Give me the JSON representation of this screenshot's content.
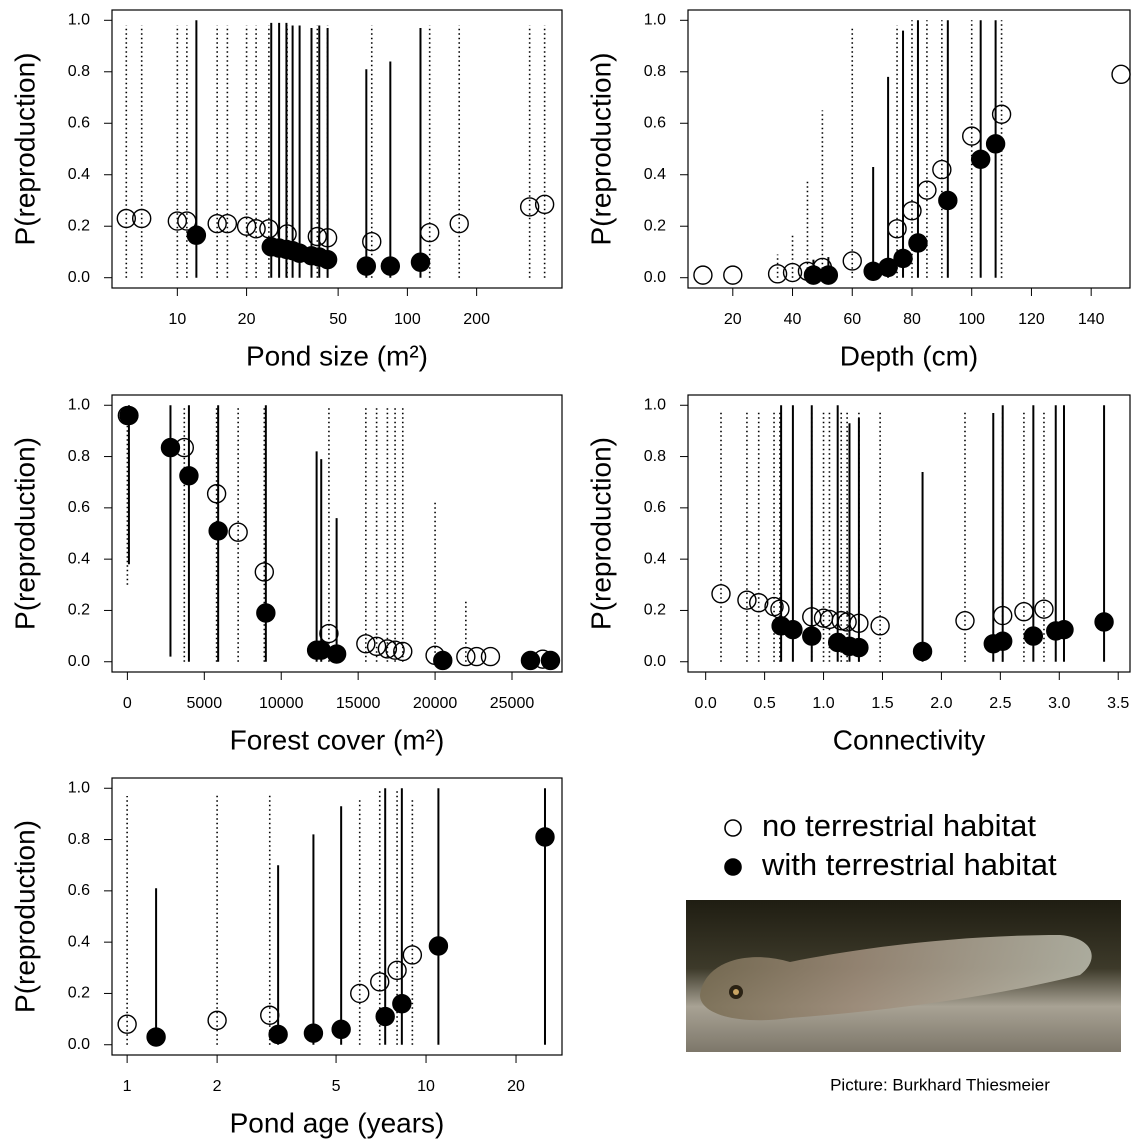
{
  "chart_data": [
    {
      "type": "scatter",
      "xlabel": "Pond size (m²)",
      "ylabel": "P(reproduction)",
      "log_x": true,
      "xlim": [
        5.2,
        470
      ],
      "ylim": [
        -0.04,
        1.04
      ],
      "xticks": [
        10,
        20,
        50,
        100,
        200
      ],
      "yticks": [
        {
          "value": 0,
          "label": "0.0"
        },
        0.2,
        0.4,
        0.6,
        0.8,
        {
          "value": 1,
          "label": "1.0"
        }
      ],
      "series": [
        {
          "filled": false,
          "x": [
            6.0,
            7.0,
            10,
            11,
            14.9,
            16.5,
            20,
            22,
            25,
            30,
            40.6,
            45,
            70,
            125,
            168,
            340,
            395
          ],
          "values": [
            0.23,
            0.23,
            0.22,
            0.22,
            0.21,
            0.21,
            0.2,
            0.19,
            0.19,
            0.17,
            0.16,
            0.155,
            0.14,
            0.175,
            0.21,
            0.275,
            0.285
          ],
          "lower": [
            0,
            0,
            0,
            0,
            0,
            0,
            0,
            0,
            0,
            0,
            0,
            0,
            0,
            0,
            0,
            0,
            0
          ],
          "upper": [
            0.98,
            0.98,
            0.98,
            0.98,
            0.98,
            0.98,
            0.98,
            0.98,
            0.98,
            0.98,
            0.98,
            0.98,
            0.98,
            0.98,
            0.98,
            0.98,
            0.98
          ]
        },
        {
          "filled": true,
          "x": [
            12.1,
            25.6,
            27.7,
            29.8,
            31.7,
            34,
            38.3,
            41.4,
            45,
            66.3,
            84.3,
            114
          ],
          "values": [
            0.165,
            0.12,
            0.115,
            0.11,
            0.105,
            0.095,
            0.085,
            0.08,
            0.07,
            0.045,
            0.045,
            0.06
          ],
          "lower": [
            0,
            0,
            0,
            0,
            0,
            0,
            0,
            0,
            0,
            0,
            0,
            0
          ],
          "upper": [
            1,
            0.99,
            0.99,
            0.99,
            0.98,
            0.98,
            0.97,
            0.98,
            0.97,
            0.81,
            0.84,
            0.97
          ]
        }
      ]
    },
    {
      "type": "scatter",
      "xlabel": "Depth (cm)",
      "ylabel": "P(reproduction)",
      "log_x": false,
      "xlim": [
        5,
        153
      ],
      "ylim": [
        -0.04,
        1.04
      ],
      "xticks": [
        20,
        40,
        60,
        80,
        100,
        120,
        140
      ],
      "yticks": [
        {
          "value": 0,
          "label": "0.0"
        },
        0.2,
        0.4,
        0.6,
        0.8,
        {
          "value": 1,
          "label": "1.0"
        }
      ],
      "series": [
        {
          "filled": false,
          "x": [
            10,
            20,
            35,
            40,
            45,
            50,
            60,
            75,
            80,
            85,
            90,
            100,
            110,
            150
          ],
          "values": [
            0.01,
            0.01,
            0.015,
            0.02,
            0.025,
            0.04,
            0.065,
            0.19,
            0.26,
            0.34,
            0.42,
            0.55,
            0.635,
            0.79
          ],
          "lower": [
            null,
            null,
            0,
            0,
            0,
            0,
            0,
            0,
            0,
            0,
            0,
            0,
            0,
            null
          ],
          "upper": [
            null,
            null,
            0.09,
            0.17,
            0.38,
            0.65,
            0.97,
            0.98,
            1,
            1,
            1,
            1,
            1,
            null
          ]
        },
        {
          "filled": true,
          "x": [
            47,
            52,
            67,
            72,
            77,
            82,
            92,
            103,
            108
          ],
          "values": [
            0.01,
            0.01,
            0.025,
            0.04,
            0.075,
            0.135,
            0.3,
            0.46,
            0.52
          ],
          "lower": [
            0,
            0,
            0,
            0,
            0,
            0,
            0,
            0,
            0
          ],
          "upper": [
            0.07,
            0.08,
            0.43,
            0.78,
            0.96,
            1,
            1,
            1,
            1
          ]
        }
      ]
    },
    {
      "type": "scatter",
      "xlabel": "Forest cover (m²)",
      "ylabel": "P(reproduction)",
      "log_x": false,
      "xlim": [
        -1000,
        28250
      ],
      "ylim": [
        -0.04,
        1.04
      ],
      "xticks": [
        0,
        5000,
        10000,
        15000,
        20000,
        25000
      ],
      "yticks": [
        {
          "value": 0,
          "label": "0.0"
        },
        0.2,
        0.4,
        0.6,
        0.8,
        {
          "value": 1,
          "label": "1.0"
        }
      ],
      "series": [
        {
          "filled": false,
          "x": [
            0,
            3700,
            5800,
            7200,
            8900,
            13100,
            15500,
            16200,
            16900,
            17400,
            17900,
            20000,
            22000,
            22700,
            23600,
            27000
          ],
          "values": [
            0.96,
            0.835,
            0.655,
            0.505,
            0.35,
            0.11,
            0.07,
            0.06,
            0.05,
            0.045,
            0.04,
            0.025,
            0.02,
            0.02,
            0.02,
            0.01
          ],
          "lower": [
            0.3,
            0,
            0,
            0,
            0,
            0,
            0,
            0,
            0,
            0,
            0,
            0,
            0,
            null,
            null,
            null
          ],
          "upper": [
            1,
            1,
            1,
            1,
            1,
            1,
            1,
            1,
            1,
            1,
            1,
            0.62,
            0.24,
            null,
            null,
            null
          ]
        },
        {
          "filled": true,
          "x": [
            100,
            2800,
            4000,
            5900,
            9000,
            12300,
            12600,
            13600,
            20500,
            26200,
            27500
          ],
          "values": [
            0.96,
            0.835,
            0.725,
            0.51,
            0.19,
            0.045,
            0.045,
            0.03,
            0.005,
            0.005,
            0.005
          ],
          "lower": [
            0.38,
            0.02,
            0,
            0,
            0,
            0,
            0,
            0,
            null,
            null,
            null
          ],
          "upper": [
            1,
            1,
            1,
            1,
            1,
            0.82,
            0.79,
            0.56,
            null,
            null,
            null
          ]
        }
      ]
    },
    {
      "type": "scatter",
      "xlabel": "Connectivity",
      "ylabel": "P(reproduction)",
      "log_x": false,
      "xlim": [
        -0.15,
        3.6
      ],
      "ylim": [
        -0.04,
        1.04
      ],
      "xticks": [
        {
          "value": 0,
          "label": "0.0"
        },
        0.5,
        {
          "value": 1,
          "label": "1.0"
        },
        1.5,
        {
          "value": 2,
          "label": "2.0"
        },
        2.5,
        {
          "value": 3,
          "label": "3.0"
        },
        3.5
      ],
      "yticks": [
        {
          "value": 0,
          "label": "0.0"
        },
        0.2,
        0.4,
        0.6,
        0.8,
        {
          "value": 1,
          "label": "1.0"
        }
      ],
      "series": [
        {
          "filled": false,
          "x": [
            0.13,
            0.35,
            0.45,
            0.58,
            0.63,
            0.9,
            1.0,
            1.05,
            1.15,
            1.2,
            1.3,
            1.48,
            2.2,
            2.52,
            2.7,
            2.87
          ],
          "values": [
            0.265,
            0.24,
            0.23,
            0.215,
            0.205,
            0.175,
            0.17,
            0.165,
            0.16,
            0.155,
            0.15,
            0.14,
            0.16,
            0.18,
            0.195,
            0.205
          ],
          "lower": [
            0,
            0,
            0,
            0,
            0,
            0,
            0,
            0,
            0,
            0,
            0,
            0,
            0,
            0,
            0,
            0
          ],
          "upper": [
            0.98,
            0.98,
            0.98,
            0.98,
            0.98,
            0.98,
            0.98,
            0.98,
            0.98,
            0.98,
            0.98,
            0.98,
            0.98,
            0.98,
            0.98,
            0.98
          ]
        },
        {
          "filled": true,
          "x": [
            0.64,
            0.74,
            0.9,
            1.12,
            1.22,
            1.3,
            1.84,
            2.44,
            2.52,
            2.78,
            2.97,
            3.04,
            3.38
          ],
          "values": [
            0.14,
            0.125,
            0.1,
            0.075,
            0.06,
            0.055,
            0.04,
            0.07,
            0.08,
            0.1,
            0.12,
            0.125,
            0.155
          ],
          "lower": [
            0,
            0,
            0,
            0,
            0,
            0,
            0,
            0,
            0,
            0,
            0,
            0,
            0
          ],
          "upper": [
            1,
            1,
            1,
            1,
            0.93,
            0.95,
            0.74,
            0.97,
            1,
            1,
            1,
            1,
            1
          ]
        }
      ]
    },
    {
      "type": "scatter",
      "xlabel": "Pond age (years)",
      "ylabel": "P(reproduction)",
      "log_x": true,
      "xlim": [
        0.89,
        28.5
      ],
      "ylim": [
        -0.04,
        1.04
      ],
      "xticks": [
        1,
        2,
        5,
        10,
        20
      ],
      "yticks": [
        {
          "value": 0,
          "label": "0.0"
        },
        0.2,
        0.4,
        0.6,
        0.8,
        {
          "value": 1,
          "label": "1.0"
        }
      ],
      "series": [
        {
          "filled": false,
          "x": [
            1,
            2,
            3,
            6,
            7,
            8,
            9
          ],
          "values": [
            0.08,
            0.095,
            0.115,
            0.2,
            0.245,
            0.29,
            0.35
          ],
          "lower": [
            0,
            0,
            0,
            0,
            0,
            0,
            0
          ],
          "upper": [
            0.97,
            0.98,
            0.98,
            0.96,
            1,
            1,
            0.96
          ]
        },
        {
          "filled": true,
          "x": [
            1.25,
            3.2,
            4.2,
            5.2,
            7.3,
            8.3,
            11,
            25
          ],
          "values": [
            0.03,
            0.04,
            0.045,
            0.06,
            0.11,
            0.16,
            0.385,
            0.81
          ],
          "lower": [
            0,
            0,
            0,
            0,
            0,
            0,
            0,
            0
          ],
          "upper": [
            0.61,
            0.7,
            0.82,
            0.93,
            1,
            1,
            1,
            1
          ]
        }
      ]
    }
  ],
  "legend": [
    {
      "label": "no terrestrial habitat",
      "filled": false
    },
    {
      "label": "with terrestrial habitat",
      "filled": true
    }
  ],
  "photo_credit": "Picture: Burkhard Thiesmeier"
}
